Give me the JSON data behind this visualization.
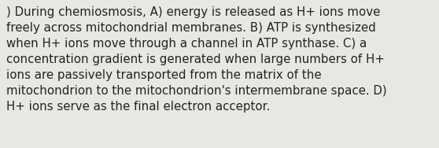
{
  "text": ") During chemiosmosis, A) energy is released as H+ ions move\nfreely across mitochondrial membranes. B) ATP is synthesized\nwhen H+ ions move through a channel in ATP synthase. C) a\nconcentration gradient is generated when large numbers of H+\nions are passively transported from the matrix of the\nmitochondrion to the mitochondrion's intermembrane space. D)\nH+ ions serve as the final electron acceptor.",
  "background_color": "#e8e8e2",
  "text_color": "#222222",
  "font_size": 10.8,
  "fig_width": 5.58,
  "fig_height": 1.88,
  "dpi": 100
}
